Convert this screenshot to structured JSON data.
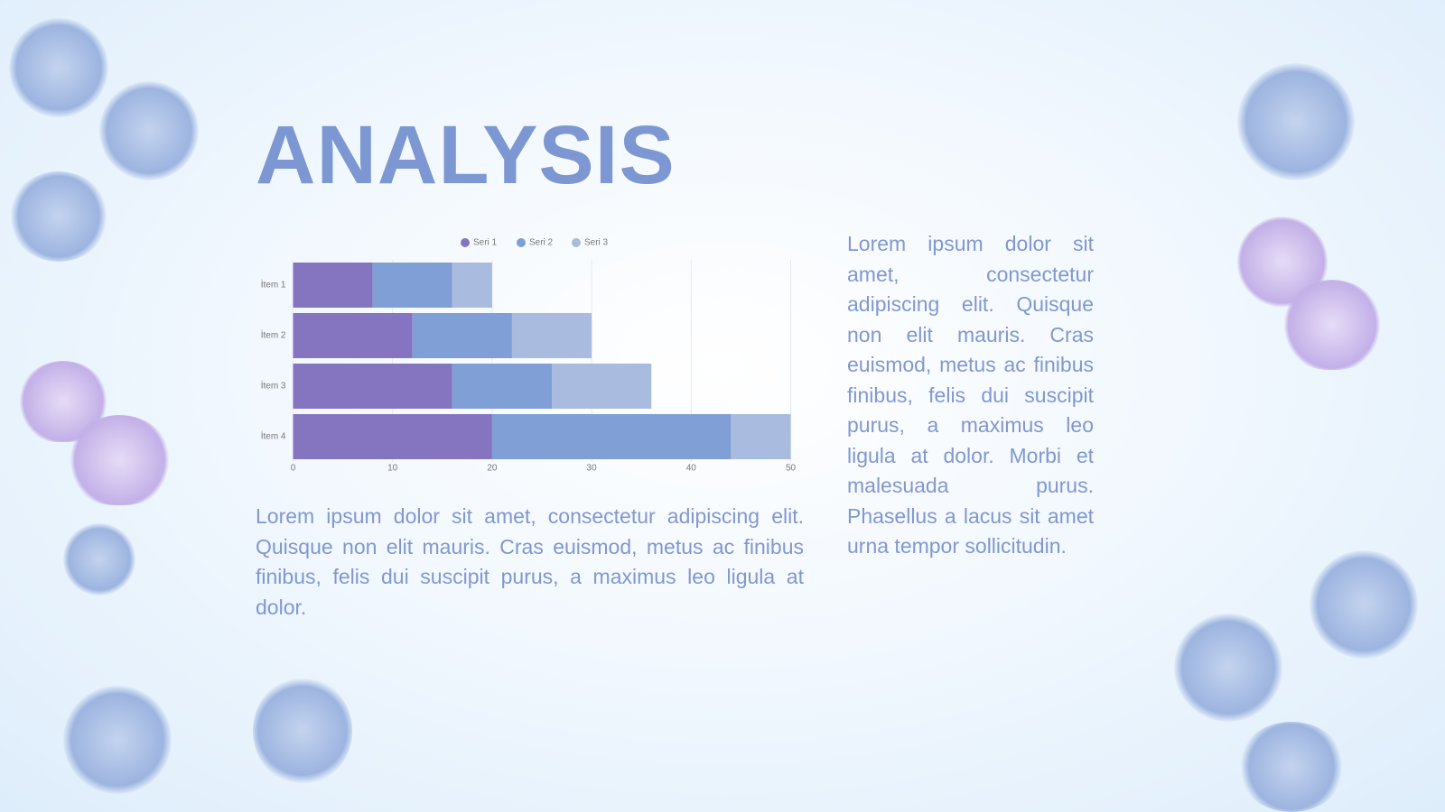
{
  "title": "ANALYSIS",
  "paragraphs": [
    "Lorem ipsum dolor sit amet, consectetur adipiscing elit. Quisque non elit mauris. Cras euismod, metus ac finibus finibus, felis dui suscipit purus, a maximus leo ligula at dolor.",
    "Lorem ipsum dolor sit amet, consectetur adipiscing elit. Quisque non elit mauris. Cras euismod, metus ac finibus finibus, felis dui suscipit purus, a maximus leo ligula at dolor. Morbi et malesuada purus. Phasellus a lacus sit amet urna tempor sollicitudin."
  ],
  "chart_data": {
    "type": "stacked_barh",
    "categories": [
      "İtem 1",
      "İtem 2",
      "İtem 3",
      "İtem 4"
    ],
    "series": [
      {
        "name": "Seri 1",
        "color": "#8575c0",
        "values": [
          8,
          12,
          16,
          20
        ]
      },
      {
        "name": "Seri 2",
        "color": "#7f9fd6",
        "values": [
          8,
          10,
          10,
          24
        ]
      },
      {
        "name": "Seri 3",
        "color": "#a9bbdf",
        "values": [
          4,
          8,
          10,
          6
        ]
      }
    ],
    "xlim": [
      0,
      50
    ],
    "xticks": [
      0,
      10,
      20,
      30,
      40,
      50
    ],
    "grid": true,
    "legend": "top"
  }
}
